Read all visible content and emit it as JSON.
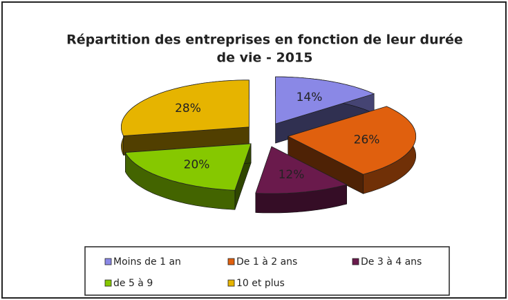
{
  "chart_data": {
    "type": "pie",
    "title": "Répartition des entreprises en fonction de leur durée de vie - 2015",
    "categories": [
      "Moins de 1 an",
      "De 1 à 2 ans",
      "De 3 à 4 ans",
      "de 5 à 9",
      "10 et plus"
    ],
    "values": [
      14,
      26,
      12,
      20,
      28
    ],
    "value_labels": [
      "14%",
      "26%",
      "12%",
      "20%",
      "28%"
    ],
    "colors": [
      "#8a88e6",
      "#e0600e",
      "#6a1a4c",
      "#86c800",
      "#e6b400"
    ],
    "legend": "bottom"
  }
}
